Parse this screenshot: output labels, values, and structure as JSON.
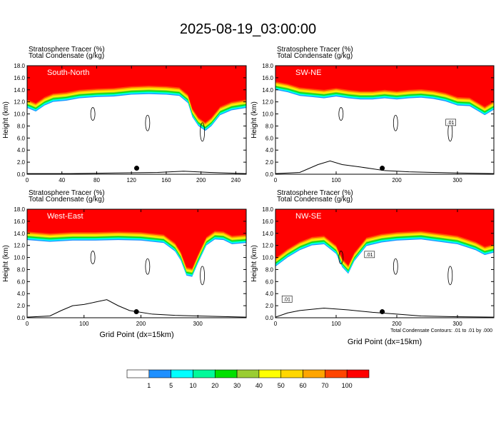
{
  "title": "2025-08-19_03:00:00",
  "colors": {
    "levels": [
      "#ffffff",
      "#1e90ff",
      "#00ffff",
      "#00fa9a",
      "#00e000",
      "#9acd32",
      "#ffff00",
      "#ffd700",
      "#ffa500",
      "#ff4500",
      "#ff0000"
    ],
    "outline": "#000000",
    "panel_label": "#ffffff"
  },
  "chart_data": [
    {
      "type": "heatmap",
      "panel_label": "South-North",
      "header_line1": "Stratosphere Tracer   (%)",
      "header_line2": "Total Condensate   (g/kg)",
      "ylabel": "Height (km)",
      "xlabel": "",
      "xlim": [
        0,
        252
      ],
      "xticks": [
        "0",
        "40",
        "80",
        "120",
        "160",
        "200",
        "240"
      ],
      "xtick_values": [
        0,
        40,
        80,
        120,
        160,
        200,
        240
      ],
      "ylim": [
        0,
        18
      ],
      "yticks": [
        "0.0",
        "2.0",
        "4.0",
        "6.0",
        "8.0",
        "10.0",
        "12.0",
        "14.0",
        "16.0",
        "18.0"
      ],
      "marker": {
        "x": 126,
        "y": 1.0
      },
      "tracer_base_km": [
        [
          0,
          11.0
        ],
        [
          10,
          10.4
        ],
        [
          20,
          11.4
        ],
        [
          30,
          12.0
        ],
        [
          45,
          12.2
        ],
        [
          60,
          12.6
        ],
        [
          80,
          12.8
        ],
        [
          100,
          12.9
        ],
        [
          120,
          13.2
        ],
        [
          140,
          13.3
        ],
        [
          160,
          13.2
        ],
        [
          175,
          13.0
        ],
        [
          185,
          11.8
        ],
        [
          190,
          9.5
        ],
        [
          197,
          8.0
        ],
        [
          205,
          7.2
        ],
        [
          212,
          8.0
        ],
        [
          222,
          9.8
        ],
        [
          235,
          10.6
        ],
        [
          252,
          11.0
        ]
      ],
      "terrain_km": [
        [
          0,
          0.1
        ],
        [
          50,
          0.1
        ],
        [
          100,
          0.2
        ],
        [
          150,
          0.3
        ],
        [
          180,
          0.5
        ],
        [
          210,
          0.3
        ],
        [
          252,
          0.1
        ]
      ]
    },
    {
      "type": "heatmap",
      "panel_label": "SW-NE",
      "header_line1": "Stratosphere Tracer   (%)",
      "header_line2": "Total Condensate   (g/kg)",
      "ylabel": "Height (km)",
      "xlabel": "",
      "xlim": [
        0,
        360
      ],
      "xticks": [
        "0",
        "100",
        "200",
        "300"
      ],
      "xtick_values": [
        0,
        100,
        200,
        300
      ],
      "ylim": [
        0,
        18
      ],
      "yticks": [
        "0.0",
        "2.0",
        "4.0",
        "6.0",
        "8.0",
        "10.0",
        "12.0",
        "14.0",
        "16.0",
        "18.0"
      ],
      "marker": {
        "x": 176,
        "y": 1.0
      },
      "contour_label": ".01",
      "tracer_base_km": [
        [
          0,
          14.0
        ],
        [
          20,
          13.6
        ],
        [
          40,
          13.0
        ],
        [
          60,
          12.8
        ],
        [
          80,
          12.6
        ],
        [
          100,
          12.9
        ],
        [
          120,
          12.6
        ],
        [
          140,
          12.4
        ],
        [
          160,
          12.4
        ],
        [
          180,
          12.6
        ],
        [
          200,
          12.4
        ],
        [
          220,
          12.6
        ],
        [
          240,
          12.7
        ],
        [
          260,
          12.5
        ],
        [
          280,
          12.1
        ],
        [
          300,
          11.4
        ],
        [
          320,
          11.3
        ],
        [
          335,
          10.4
        ],
        [
          345,
          9.8
        ],
        [
          360,
          10.7
        ]
      ],
      "terrain_km": [
        [
          0,
          0.1
        ],
        [
          40,
          0.3
        ],
        [
          70,
          1.6
        ],
        [
          90,
          2.2
        ],
        [
          110,
          1.6
        ],
        [
          140,
          1.2
        ],
        [
          180,
          0.6
        ],
        [
          220,
          0.4
        ],
        [
          260,
          0.3
        ],
        [
          300,
          0.2
        ],
        [
          360,
          0.1
        ]
      ]
    },
    {
      "type": "heatmap",
      "panel_label": "West-East",
      "header_line1": "Stratosphere Tracer   (%)",
      "header_line2": "Total Condensate   (g/kg)",
      "ylabel": "Height (km)",
      "xlabel": "Grid Point  (dx=15km)",
      "xlim": [
        0,
        385
      ],
      "xticks": [
        "0",
        "100",
        "200",
        "300"
      ],
      "xtick_values": [
        0,
        100,
        200,
        300
      ],
      "ylim": [
        0,
        18
      ],
      "yticks": [
        "0.0",
        "2.0",
        "4.0",
        "6.0",
        "8.0",
        "10.0",
        "12.0",
        "14.0",
        "16.0",
        "18.0"
      ],
      "marker": {
        "x": 192,
        "y": 1.0
      },
      "tracer_base_km": [
        [
          0,
          12.9
        ],
        [
          40,
          12.6
        ],
        [
          80,
          12.8
        ],
        [
          120,
          12.8
        ],
        [
          160,
          12.9
        ],
        [
          200,
          12.8
        ],
        [
          240,
          12.4
        ],
        [
          260,
          11.0
        ],
        [
          270,
          9.5
        ],
        [
          280,
          7.0
        ],
        [
          290,
          6.8
        ],
        [
          300,
          9.0
        ],
        [
          315,
          12.0
        ],
        [
          330,
          13.0
        ],
        [
          345,
          12.9
        ],
        [
          360,
          12.2
        ],
        [
          385,
          12.4
        ]
      ],
      "terrain_km": [
        [
          0,
          0.1
        ],
        [
          40,
          0.3
        ],
        [
          60,
          1.2
        ],
        [
          80,
          2.0
        ],
        [
          100,
          2.2
        ],
        [
          120,
          2.6
        ],
        [
          140,
          3.0
        ],
        [
          160,
          2.0
        ],
        [
          180,
          1.2
        ],
        [
          220,
          0.6
        ],
        [
          260,
          0.4
        ],
        [
          300,
          0.3
        ],
        [
          340,
          0.2
        ],
        [
          385,
          0.1
        ]
      ]
    },
    {
      "type": "heatmap",
      "panel_label": "NW-SE",
      "header_line1": "Stratosphere Tracer   (%)",
      "header_line2": "Total Condensate   (g/kg)",
      "ylabel": "Height (km)",
      "xlabel": "Grid Point  (dx=15km)",
      "xlim": [
        0,
        360
      ],
      "xticks": [
        "0",
        "100",
        "200",
        "300"
      ],
      "xtick_values": [
        0,
        100,
        200,
        300
      ],
      "ylim": [
        0,
        18
      ],
      "yticks": [
        "0.0",
        "2.0",
        "4.0",
        "6.0",
        "8.0",
        "10.0",
        "12.0",
        "14.0",
        "16.0",
        "18.0"
      ],
      "marker": {
        "x": 176,
        "y": 1.0
      },
      "contour_label": ".01",
      "contour_label_2": ".01",
      "footnote": "Total Condensate Contours: .01 to .01 by .000",
      "tracer_base_km": [
        [
          0,
          8.5
        ],
        [
          20,
          10.0
        ],
        [
          40,
          11.2
        ],
        [
          60,
          12.0
        ],
        [
          80,
          12.2
        ],
        [
          100,
          10.6
        ],
        [
          110,
          8.4
        ],
        [
          120,
          7.3
        ],
        [
          130,
          9.4
        ],
        [
          150,
          11.9
        ],
        [
          175,
          12.5
        ],
        [
          200,
          12.8
        ],
        [
          240,
          13.0
        ],
        [
          270,
          12.6
        ],
        [
          300,
          12.2
        ],
        [
          330,
          11.2
        ],
        [
          345,
          10.4
        ],
        [
          360,
          10.8
        ]
      ],
      "terrain_km": [
        [
          0,
          0.1
        ],
        [
          20,
          0.8
        ],
        [
          40,
          1.2
        ],
        [
          80,
          1.6
        ],
        [
          120,
          1.3
        ],
        [
          160,
          0.9
        ],
        [
          200,
          0.6
        ],
        [
          240,
          0.3
        ],
        [
          280,
          0.2
        ],
        [
          360,
          0.1
        ]
      ]
    }
  ],
  "colorbar": {
    "labels": [
      "1",
      "5",
      "10",
      "20",
      "30",
      "40",
      "50",
      "60",
      "70",
      "100"
    ]
  }
}
